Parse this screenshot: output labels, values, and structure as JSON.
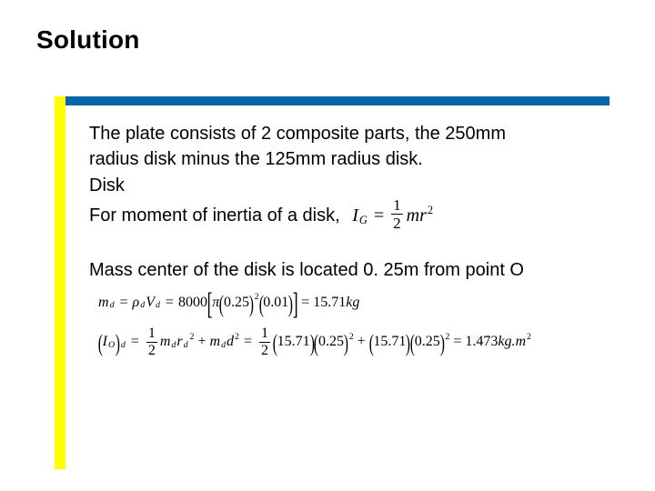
{
  "colors": {
    "accent": "#0066a8",
    "yellow": "#ffff00",
    "text": "#000000",
    "background": "#ffffff"
  },
  "title": "Solution",
  "body": {
    "p1_l1": "The plate consists of 2 composite parts, the 250mm",
    "p1_l2": "radius disk minus the 125mm radius disk.",
    "p1_l3": "Disk",
    "p1_l4": "For moment of inertia of a disk,",
    "p2": "Mass center of the disk is located 0. 25m from point O"
  },
  "eq_inline": {
    "I": "I",
    "Gsub": "G",
    "eq": "=",
    "frac_num": "1",
    "frac_den": "2",
    "m": "m",
    "r": "r",
    "sq": "2"
  },
  "eq1": {
    "md": "m",
    "dsub": "d",
    "eq": "=",
    "rho": "ρ",
    "Vd": "V",
    "val8000": "8000",
    "pi": "π",
    "r025": "0.25",
    "sq": "2",
    "t001": "0.01",
    "res": "15.71",
    "kg": "kg"
  },
  "eq2": {
    "Io": "I",
    "Osub": "O",
    "dsub": "d",
    "eq": "=",
    "half_n": "1",
    "half_d": "2",
    "md": "m",
    "r": "r",
    "sq": "2",
    "plus": "+",
    "dlen": "d",
    "v1571": "15.71",
    "v025": "0.25",
    "res": "1.473",
    "unit": "kg.m",
    "usq": "2"
  }
}
